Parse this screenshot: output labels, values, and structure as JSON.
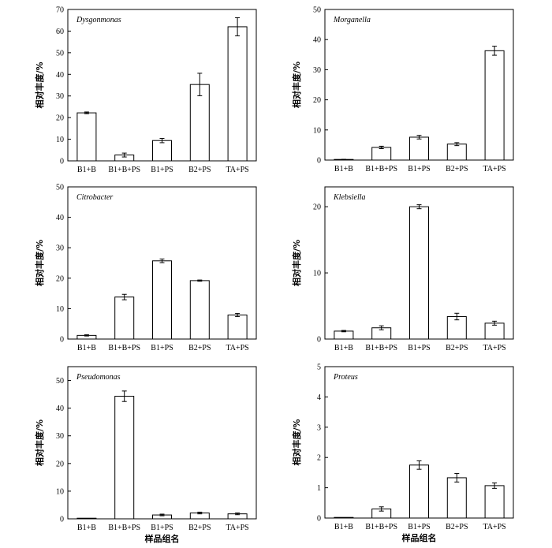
{
  "chart_data": [
    {
      "type": "bar",
      "title": "Dysgonmonas",
      "ylabel": "相对丰度/%",
      "xlabel": "",
      "categories": [
        "B1+B",
        "B1+B+PS",
        "B1+PS",
        "B2+PS",
        "TA+PS"
      ],
      "values": [
        22.2,
        2.7,
        9.4,
        35.3,
        62.0
      ],
      "errors": [
        0.4,
        0.9,
        1.0,
        5.2,
        4.2
      ],
      "ylim": [
        0,
        70
      ],
      "yticks": [
        0,
        10,
        20,
        30,
        40,
        50,
        60,
        70
      ],
      "grid": false
    },
    {
      "type": "bar",
      "title": "Morganella",
      "ylabel": "相对丰度/%",
      "xlabel": "",
      "categories": [
        "B1+B",
        "B1+B+PS",
        "B1+PS",
        "B2+PS",
        "TA+PS"
      ],
      "values": [
        0.2,
        4.2,
        7.6,
        5.3,
        36.3
      ],
      "errors": [
        0.05,
        0.4,
        0.6,
        0.5,
        1.5
      ],
      "ylim": [
        0,
        50
      ],
      "yticks": [
        0,
        10,
        20,
        30,
        40,
        50
      ],
      "grid": false
    },
    {
      "type": "bar",
      "title": "Citrobacter",
      "ylabel": "相对丰度/%",
      "xlabel": "",
      "categories": [
        "B1+B",
        "B1+B+PS",
        "B1+PS",
        "B2+PS",
        "TA+PS"
      ],
      "values": [
        1.2,
        13.8,
        25.7,
        19.2,
        7.9
      ],
      "errors": [
        0.2,
        0.9,
        0.6,
        0.2,
        0.5
      ],
      "ylim": [
        0,
        50
      ],
      "yticks": [
        0,
        10,
        20,
        30,
        40,
        50
      ],
      "grid": false
    },
    {
      "type": "bar",
      "title": "Klebsiella",
      "ylabel": "相对丰度/%",
      "xlabel": "",
      "categories": [
        "B1+B",
        "B1+B+PS",
        "B1+PS",
        "B2+PS",
        "TA+PS"
      ],
      "values": [
        1.2,
        1.7,
        20.0,
        3.4,
        2.4
      ],
      "errors": [
        0.1,
        0.3,
        0.3,
        0.5,
        0.3
      ],
      "ylim": [
        0,
        23
      ],
      "yticks": [
        0,
        10,
        20
      ],
      "grid": false
    },
    {
      "type": "bar",
      "title": "Pseudomonas",
      "ylabel": "相对丰度/%",
      "xlabel": "样品组名",
      "categories": [
        "B1+B",
        "B1+B+PS",
        "B1+PS",
        "B2+PS",
        "TA+PS"
      ],
      "values": [
        0.05,
        44.3,
        1.4,
        2.1,
        1.8
      ],
      "errors": [
        0.02,
        1.9,
        0.3,
        0.3,
        0.3
      ],
      "ylim": [
        0,
        55
      ],
      "yticks": [
        0,
        10,
        20,
        30,
        40,
        50
      ],
      "grid": false
    },
    {
      "type": "bar",
      "title": "Proteus",
      "ylabel": "相对丰度/%",
      "xlabel": "样品组名",
      "categories": [
        "B1+B",
        "B1+B+PS",
        "B1+PS",
        "B2+PS",
        "TA+PS"
      ],
      "values": [
        0.0,
        0.3,
        1.75,
        1.33,
        1.07
      ],
      "errors": [
        0.0,
        0.07,
        0.14,
        0.14,
        0.09
      ],
      "ylim": [
        0,
        5
      ],
      "yticks": [
        0,
        1,
        2,
        3,
        4,
        5
      ],
      "grid": false
    }
  ]
}
